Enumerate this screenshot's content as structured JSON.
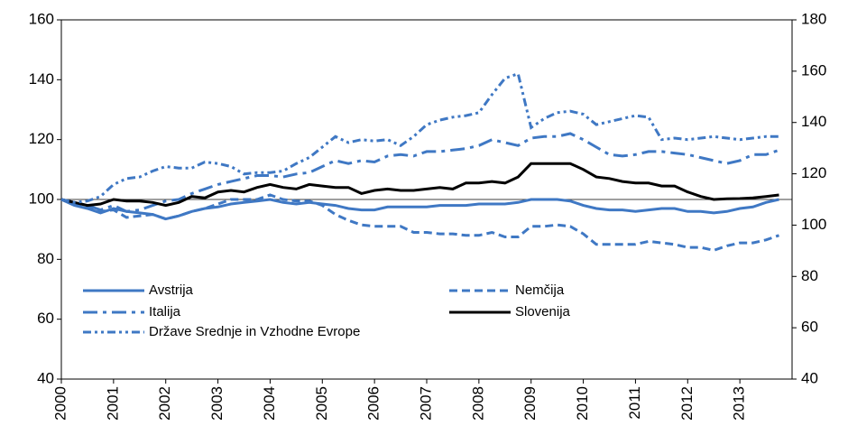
{
  "chart_data": {
    "type": "line",
    "x": [
      2000,
      2000.25,
      2000.5,
      2000.75,
      2001,
      2001.25,
      2001.5,
      2001.75,
      2002,
      2002.25,
      2002.5,
      2002.75,
      2003,
      2003.25,
      2003.5,
      2003.75,
      2004,
      2004.25,
      2004.5,
      2004.75,
      2005,
      2005.25,
      2005.5,
      2005.75,
      2006,
      2006.25,
      2006.5,
      2006.75,
      2007,
      2007.25,
      2007.5,
      2007.75,
      2008,
      2008.25,
      2008.5,
      2008.75,
      2009,
      2009.25,
      2009.5,
      2009.75,
      2010,
      2010.25,
      2010.5,
      2010.75,
      2011,
      2011.25,
      2011.5,
      2011.75,
      2012,
      2012.25,
      2012.5,
      2012.75,
      2013,
      2013.25,
      2013.5,
      2013.75
    ],
    "series": [
      {
        "name": "Avstrija",
        "color": "#3f78c4",
        "line_style": "solid",
        "values": [
          100,
          98,
          97,
          95.5,
          97,
          96,
          95.5,
          95,
          93.5,
          94.5,
          96,
          97,
          97.5,
          98.5,
          99,
          99.5,
          100,
          99,
          98.5,
          99,
          98.5,
          98,
          97,
          96.5,
          96.5,
          97.5,
          97.5,
          97.5,
          97.5,
          98,
          98,
          98,
          98.5,
          98.5,
          98.5,
          99,
          100,
          100,
          100,
          99.5,
          98,
          97,
          96.5,
          96.5,
          96,
          96.5,
          97,
          97,
          96,
          96,
          95.5,
          96,
          97,
          97.5,
          99,
          100
        ]
      },
      {
        "name": "Nemčija",
        "color": "#3f78c4",
        "line_style": "dashed",
        "values": [
          100,
          98.5,
          97.5,
          96,
          96.5,
          94,
          94.5,
          95,
          93.5,
          94.5,
          96,
          97,
          98.5,
          100,
          100,
          100,
          101.5,
          100,
          99.5,
          99.5,
          98,
          95,
          93,
          91.5,
          91,
          91,
          91,
          89,
          89,
          88.5,
          88.5,
          88,
          88,
          89,
          87.5,
          87.5,
          91,
          91,
          91.5,
          91,
          88.5,
          85,
          85,
          85,
          85,
          86,
          85.5,
          85,
          84,
          84,
          83,
          84.5,
          85.5,
          85.5,
          86.5,
          88
        ]
      },
      {
        "name": "Italija",
        "color": "#3f78c4",
        "line_style": "dash-dot",
        "values": [
          100,
          99,
          98,
          96.5,
          98,
          96,
          96.5,
          98,
          99.5,
          100,
          102,
          103.5,
          105,
          106,
          107,
          108,
          108,
          107.5,
          108.5,
          109,
          111,
          113,
          112,
          113,
          112.5,
          114.5,
          115,
          114.5,
          116,
          116,
          116.5,
          117,
          118,
          120,
          119,
          118,
          120.5,
          121,
          121,
          122,
          120,
          117.5,
          115,
          114.5,
          115,
          116,
          116,
          115.5,
          115,
          114,
          113,
          112,
          113,
          115,
          115,
          116.5
        ]
      },
      {
        "name": "Slovenija",
        "color": "#000000",
        "line_style": "solid",
        "values": [
          100,
          99,
          98,
          98.5,
          100,
          99.5,
          99.5,
          99,
          98,
          99,
          101,
          100.5,
          102.5,
          103,
          102.5,
          104,
          105,
          104,
          103.5,
          105,
          104.5,
          104,
          104,
          102,
          103,
          103.5,
          103,
          103,
          103.5,
          104,
          103.5,
          105.5,
          105.5,
          106,
          105.5,
          107.5,
          112,
          112,
          112,
          112,
          110,
          107.5,
          107,
          106,
          105.5,
          105.5,
          104.5,
          104.5,
          102.5,
          101,
          100,
          100.2,
          100.3,
          100.5,
          101,
          101.5
        ]
      },
      {
        "name": "Države Srednje in Vzhodne Evrope",
        "color": "#3f78c4",
        "line_style": "dash-dot-dot",
        "values": [
          100,
          99,
          99.5,
          101,
          105,
          107,
          107.5,
          109.5,
          111,
          110.5,
          110.5,
          112.5,
          112,
          111,
          108.5,
          109,
          109,
          109.5,
          112,
          114,
          117.5,
          121,
          119,
          120,
          119.5,
          120,
          118,
          121,
          125,
          126.5,
          127.5,
          128,
          129,
          135,
          140.5,
          142,
          124,
          127,
          129,
          129.5,
          128.5,
          125,
          126,
          127,
          128,
          127.5,
          120,
          120.5,
          120,
          120.5,
          121,
          120.5,
          120,
          120.5,
          121,
          121
        ]
      }
    ],
    "xlim": [
      2000,
      2014
    ],
    "xticks": [
      2000,
      2001,
      2002,
      2003,
      2004,
      2005,
      2006,
      2007,
      2008,
      2009,
      2010,
      2011,
      2012,
      2013
    ],
    "ylim": [
      40,
      160
    ],
    "yticks": [
      40,
      60,
      80,
      100,
      120,
      140,
      160
    ],
    "y2lim": [
      40,
      180
    ],
    "y2ticks": [
      40,
      60,
      80,
      100,
      120,
      140,
      160,
      180
    ],
    "hline": 100
  }
}
